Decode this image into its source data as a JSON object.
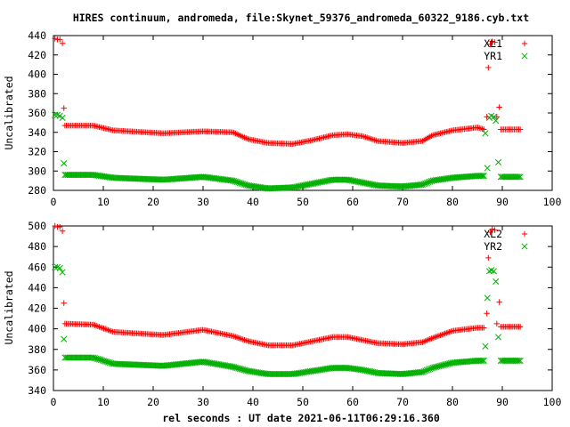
{
  "figure": {
    "title": "HIRES continuum, andromeda, file:Skynet_59376_andromeda_60322_9186.cyb.txt",
    "xlabel": "rel seconds : UT date 2021-06-11T06:29:16.360"
  },
  "colors": {
    "red_series": "#ff0000",
    "green_series": "#00b000",
    "axis": "#000000"
  },
  "chart_data": [
    {
      "type": "scatter",
      "title": "",
      "xlabel": "",
      "ylabel": "Uncalibrated",
      "xlim": [
        0,
        100
      ],
      "ylim": [
        280,
        440
      ],
      "x_ticks": [
        "0",
        "10",
        "20",
        "30",
        "40",
        "50",
        "60",
        "70",
        "80",
        "90",
        "100"
      ],
      "y_ticks": [
        "280",
        "300",
        "320",
        "340",
        "360",
        "380",
        "400",
        "420",
        "440"
      ],
      "grid": false,
      "legend_position": "top-right",
      "series": [
        {
          "name": "XL1",
          "marker": "plus",
          "color": "#ff0000",
          "points": [
            [
              0.3,
              437
            ],
            [
              0.8,
              436
            ],
            [
              1.3,
              436
            ],
            [
              1.8,
              432
            ],
            [
              2.1,
              365
            ],
            [
              86.9,
              356
            ],
            [
              87.2,
              407
            ],
            [
              87.6,
              431
            ],
            [
              88.0,
              434
            ],
            [
              88.5,
              433
            ],
            [
              88.9,
              356
            ],
            [
              89.4,
              366
            ]
          ],
          "trend": [
            [
              2.3,
              347
            ],
            [
              8,
              347
            ],
            [
              12,
              342
            ],
            [
              22,
              339
            ],
            [
              30,
              341
            ],
            [
              36,
              340
            ],
            [
              39,
              333
            ],
            [
              43,
              329
            ],
            [
              48,
              328
            ],
            [
              52,
              332
            ],
            [
              56,
              337
            ],
            [
              59,
              338
            ],
            [
              62,
              336
            ],
            [
              65,
              331
            ],
            [
              70,
              329
            ],
            [
              74,
              331
            ],
            [
              76,
              337
            ],
            [
              80,
              342
            ],
            [
              85,
              345
            ],
            [
              86.3,
              343
            ]
          ],
          "segment2": [
            [
              89.7,
              343
            ],
            [
              93.6,
              343
            ]
          ]
        },
        {
          "name": "YR1",
          "marker": "cross",
          "color": "#00b000",
          "points": [
            [
              0.3,
              358
            ],
            [
              0.8,
              358
            ],
            [
              1.3,
              357
            ],
            [
              1.8,
              355
            ],
            [
              2.1,
              308
            ],
            [
              86.6,
              339
            ],
            [
              87.0,
              303
            ],
            [
              87.4,
              355
            ],
            [
              87.8,
              357
            ],
            [
              88.3,
              356
            ],
            [
              88.7,
              352
            ],
            [
              89.2,
              309
            ]
          ],
          "trend": [
            [
              2.3,
              296
            ],
            [
              8,
              296
            ],
            [
              12,
              293
            ],
            [
              22,
              291
            ],
            [
              30,
              294
            ],
            [
              36,
              290
            ],
            [
              39,
              285
            ],
            [
              43,
              282
            ],
            [
              48,
              283
            ],
            [
              52,
              287
            ],
            [
              56,
              291
            ],
            [
              59,
              291
            ],
            [
              62,
              288
            ],
            [
              65,
              285
            ],
            [
              70,
              284
            ],
            [
              74,
              286
            ],
            [
              76,
              290
            ],
            [
              80,
              293
            ],
            [
              85,
              295
            ],
            [
              86.3,
              295
            ]
          ],
          "segment2": [
            [
              89.7,
              294
            ],
            [
              93.6,
              294
            ]
          ]
        }
      ]
    },
    {
      "type": "scatter",
      "title": "",
      "xlabel": "",
      "ylabel": "Uncalibrated",
      "xlim": [
        0,
        100
      ],
      "ylim": [
        340,
        500
      ],
      "x_ticks": [
        "0",
        "10",
        "20",
        "30",
        "40",
        "50",
        "60",
        "70",
        "80",
        "90",
        "100"
      ],
      "y_ticks": [
        "340",
        "360",
        "380",
        "400",
        "420",
        "440",
        "460",
        "480",
        "500"
      ],
      "grid": false,
      "legend_position": "top-right",
      "series": [
        {
          "name": "XL2",
          "marker": "plus",
          "color": "#ff0000",
          "points": [
            [
              0.3,
              500
            ],
            [
              0.8,
              499
            ],
            [
              1.3,
              499
            ],
            [
              1.8,
              495
            ],
            [
              2.1,
              425
            ],
            [
              86.9,
              415
            ],
            [
              87.2,
              469
            ],
            [
              87.6,
              494
            ],
            [
              88.0,
              497
            ],
            [
              88.5,
              496
            ],
            [
              88.9,
              405
            ],
            [
              89.4,
              426
            ]
          ],
          "trend": [
            [
              2.3,
              405
            ],
            [
              8,
              404
            ],
            [
              12,
              397
            ],
            [
              22,
              394
            ],
            [
              30,
              399
            ],
            [
              36,
              393
            ],
            [
              39,
              388
            ],
            [
              43,
              384
            ],
            [
              48,
              384
            ],
            [
              52,
              388
            ],
            [
              56,
              392
            ],
            [
              59,
              392
            ],
            [
              62,
              389
            ],
            [
              65,
              386
            ],
            [
              70,
              385
            ],
            [
              74,
              387
            ],
            [
              76,
              391
            ],
            [
              80,
              398
            ],
            [
              85,
              401
            ],
            [
              86.3,
              401
            ]
          ],
          "segment2": [
            [
              89.7,
              402
            ],
            [
              93.6,
              402
            ]
          ]
        },
        {
          "name": "YR2",
          "marker": "cross",
          "color": "#00b000",
          "points": [
            [
              0.3,
              460
            ],
            [
              0.8,
              460
            ],
            [
              1.3,
              459
            ],
            [
              1.8,
              455
            ],
            [
              2.1,
              390
            ],
            [
              86.6,
              383
            ],
            [
              87.0,
              430
            ],
            [
              87.4,
              456
            ],
            [
              87.8,
              457
            ],
            [
              88.3,
              456
            ],
            [
              88.7,
              446
            ],
            [
              89.2,
              392
            ]
          ],
          "trend": [
            [
              2.3,
              372
            ],
            [
              8,
              372
            ],
            [
              12,
              366
            ],
            [
              22,
              364
            ],
            [
              30,
              368
            ],
            [
              36,
              363
            ],
            [
              39,
              359
            ],
            [
              43,
              356
            ],
            [
              48,
              356
            ],
            [
              52,
              359
            ],
            [
              56,
              362
            ],
            [
              59,
              362
            ],
            [
              62,
              360
            ],
            [
              65,
              357
            ],
            [
              70,
              356
            ],
            [
              74,
              358
            ],
            [
              76,
              362
            ],
            [
              80,
              367
            ],
            [
              85,
              369
            ],
            [
              86.3,
              369
            ]
          ],
          "segment2": [
            [
              89.7,
              369
            ],
            [
              93.6,
              369
            ]
          ]
        }
      ]
    }
  ]
}
